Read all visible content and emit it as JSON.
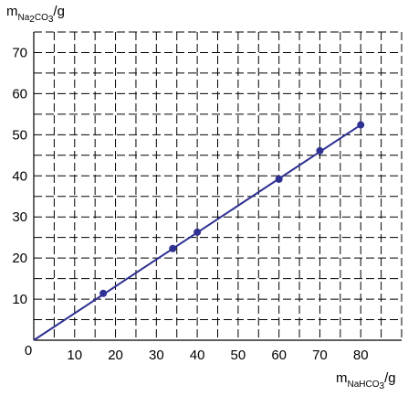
{
  "chart_data": {
    "type": "scatter",
    "title": "",
    "xlabel": {
      "base": "m",
      "subscript": "NaHCO",
      "subscript2": "3",
      "unit": "/g"
    },
    "ylabel": {
      "base": "m",
      "subscript": "Na",
      "subscript2": "2",
      "subscript3": "CO",
      "subscript4": "3",
      "unit": "/g"
    },
    "origin_label": "0",
    "xlim": [
      0,
      90
    ],
    "ylim": [
      0,
      75
    ],
    "x_ticks": [
      "10",
      "20",
      "30",
      "40",
      "50",
      "60",
      "70",
      "80"
    ],
    "y_ticks": [
      "10",
      "20",
      "30",
      "40",
      "50",
      "60",
      "70"
    ],
    "x_tick_values": [
      10,
      20,
      30,
      40,
      50,
      60,
      70,
      80
    ],
    "y_tick_values": [
      10,
      20,
      30,
      40,
      50,
      60,
      70
    ],
    "grid": true,
    "grid_style": "dashed, minor every 5 units",
    "series": [
      {
        "points": [
          {
            "x": 17,
            "y": 11.4
          },
          {
            "x": 34,
            "y": 22.3
          },
          {
            "x": 40,
            "y": 26.3
          },
          {
            "x": 60,
            "y": 39.2
          },
          {
            "x": 70,
            "y": 46.1
          },
          {
            "x": 80,
            "y": 52.4
          }
        ],
        "fit_line": {
          "x": [
            0,
            80
          ],
          "y": [
            0,
            52.4
          ]
        },
        "color": "#2e3192"
      }
    ]
  }
}
